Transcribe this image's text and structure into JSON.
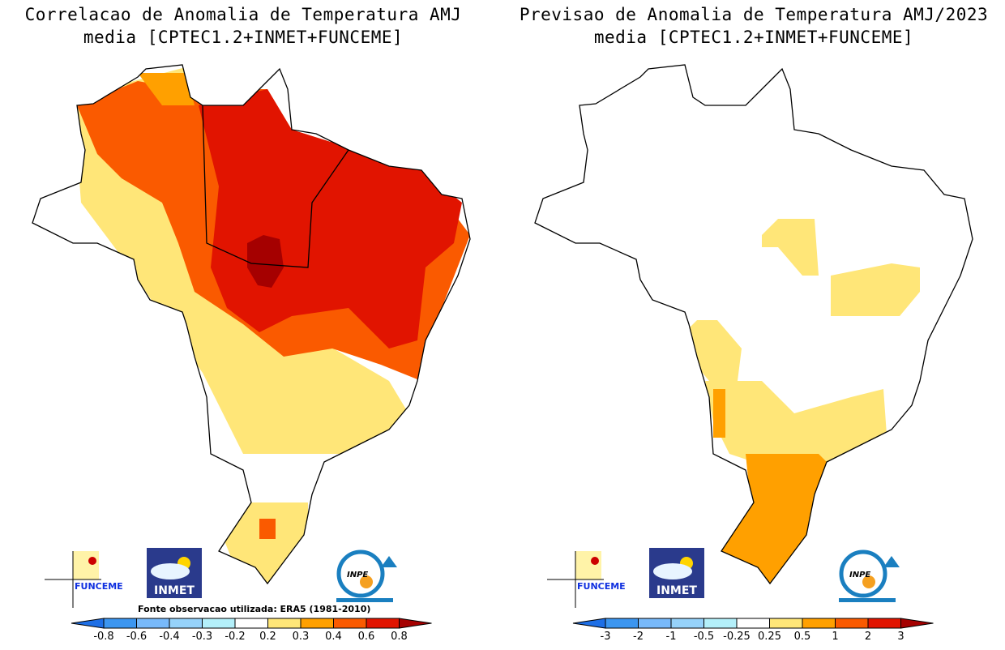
{
  "left_panel": {
    "title_line1": "Correlacao de Anomalia de Temperatura AMJ",
    "title_line2": "media [CPTEC1.2+INMET+FUNCEME]",
    "source_note": "Fonte observacao utilizada: ERA5 (1981-2010)",
    "colorbar": {
      "ticks": [
        "-0.8",
        "-0.6",
        "-0.4",
        "-0.3",
        "-0.2",
        "0.2",
        "0.3",
        "0.4",
        "0.6",
        "0.8"
      ],
      "colors": [
        "#1e6fe6",
        "#3c96f0",
        "#78b9fa",
        "#96d2fa",
        "#b4f0fa",
        "#ffffff",
        "#ffe678",
        "#ffa000",
        "#fa5a00",
        "#e11400",
        "#a50000"
      ]
    }
  },
  "right_panel": {
    "title_line1": "Previsao de Anomalia de Temperatura AMJ/2023",
    "title_line2": "media [CPTEC1.2+INMET+FUNCEME]",
    "colorbar": {
      "ticks": [
        "-3",
        "-2",
        "-1",
        "-0.5",
        "-0.25",
        "0.25",
        "0.5",
        "1",
        "2",
        "3"
      ],
      "colors": [
        "#1e6fe6",
        "#3c96f0",
        "#78b9fa",
        "#96d2fa",
        "#b4f0fa",
        "#ffffff",
        "#ffe678",
        "#ffa000",
        "#fa5a00",
        "#e11400",
        "#a50000"
      ]
    }
  },
  "logos": {
    "funceme": "FUNCEME",
    "inmet": "INMET",
    "inpe": "INPE"
  }
}
